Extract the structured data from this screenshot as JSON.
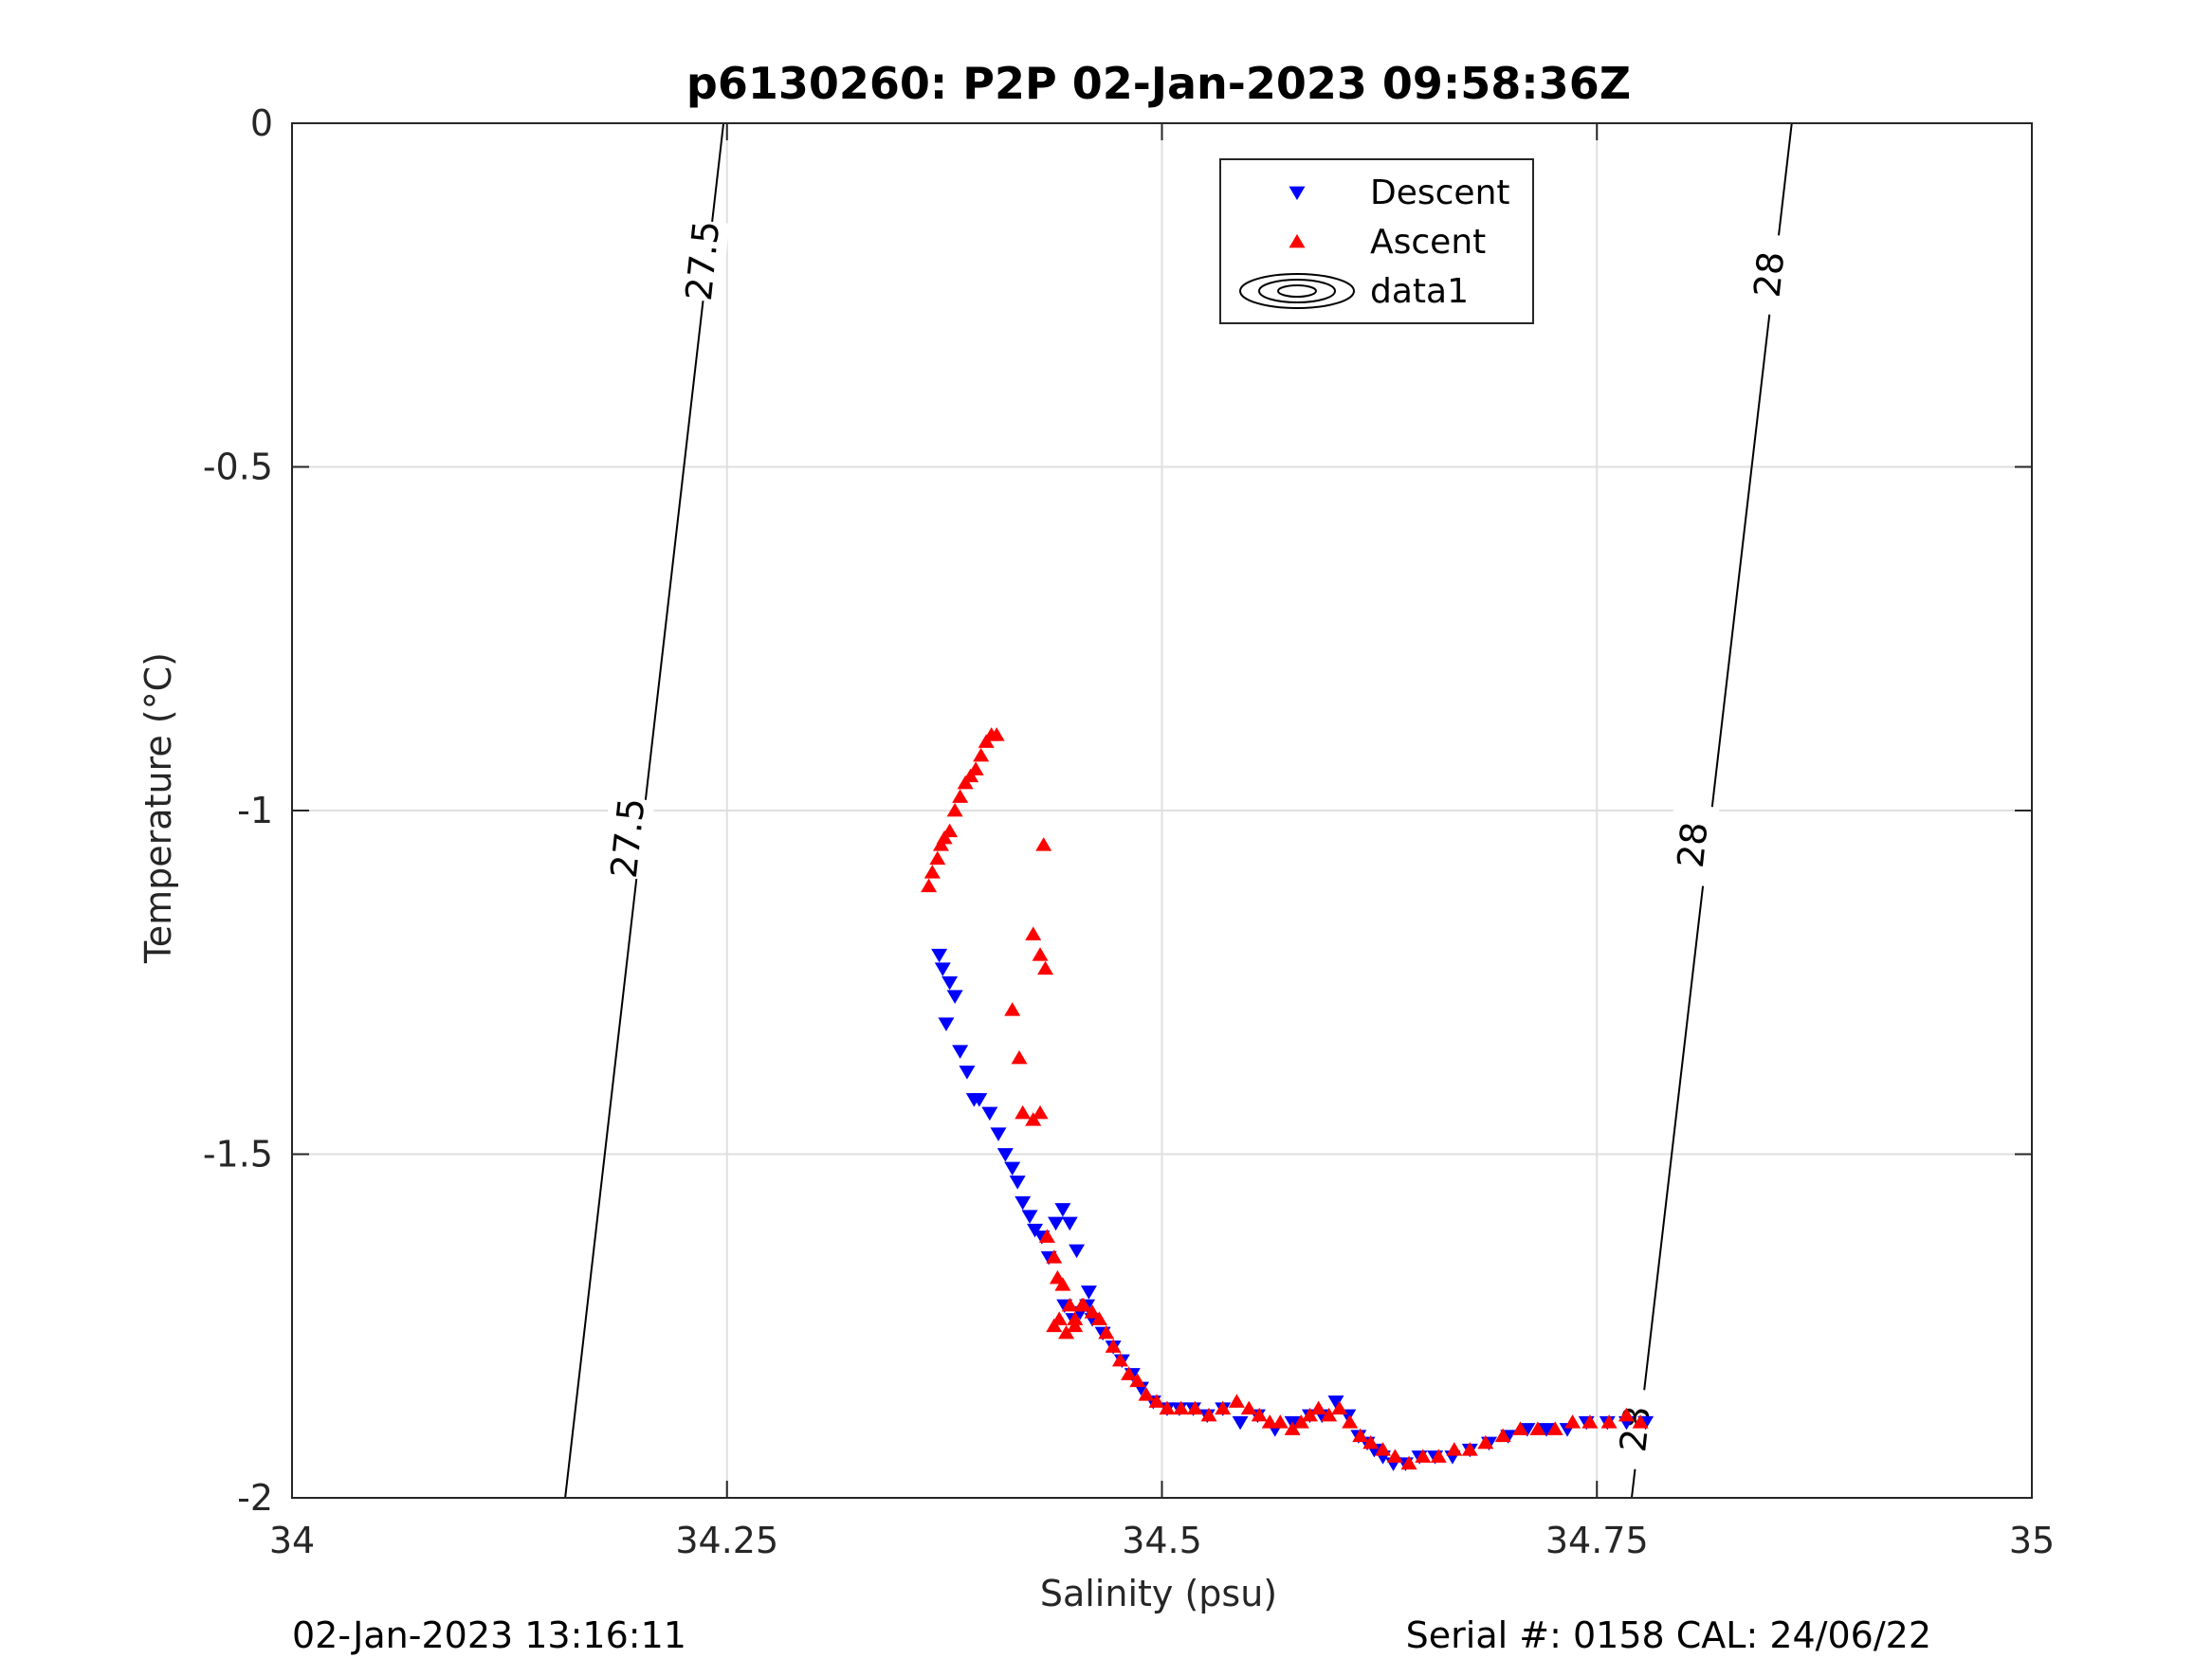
{
  "chart_data": {
    "type": "scatter",
    "title": "p6130260: P2P 02-Jan-2023 09:58:36Z",
    "xlabel": "Salinity (psu)",
    "ylabel": "Temperature (°C)",
    "xlim": [
      34,
      35
    ],
    "ylim": [
      -2,
      0
    ],
    "grid": true,
    "x_ticks": [
      34,
      34.25,
      34.5,
      34.75,
      35
    ],
    "x_tick_labels": [
      "34",
      "34.25",
      "34.5",
      "34.75",
      "35"
    ],
    "y_ticks": [
      0,
      -0.5,
      -1,
      -1.5,
      -2
    ],
    "y_tick_labels": [
      "0",
      "-0.5",
      "-1",
      "-1.5",
      "-2"
    ],
    "legend_position": "top-center",
    "series": [
      {
        "name": "Descent",
        "marker": "triangle-down",
        "color": "#0000ff",
        "x": [
          34.372,
          34.374,
          34.378,
          34.381,
          34.376,
          34.384,
          34.388,
          34.392,
          34.395,
          34.401,
          34.406,
          34.41,
          34.414,
          34.417,
          34.42,
          34.424,
          34.427,
          34.431,
          34.435,
          34.439,
          34.443,
          34.447,
          34.451,
          34.458,
          34.444,
          34.449,
          34.453,
          34.457,
          34.46,
          34.466,
          34.472,
          34.477,
          34.483,
          34.488,
          34.495,
          34.503,
          34.51,
          34.518,
          34.526,
          34.535,
          34.545,
          34.555,
          34.565,
          34.575,
          34.585,
          34.592,
          34.6,
          34.607,
          34.613,
          34.618,
          34.622,
          34.627,
          34.633,
          34.64,
          34.648,
          34.657,
          34.667,
          34.677,
          34.688,
          34.699,
          34.71,
          34.721,
          34.733,
          34.744,
          34.756,
          34.767,
          34.778
        ],
        "y": [
          -1.21,
          -1.23,
          -1.25,
          -1.27,
          -1.31,
          -1.35,
          -1.38,
          -1.42,
          -1.42,
          -1.44,
          -1.47,
          -1.5,
          -1.52,
          -1.54,
          -1.57,
          -1.59,
          -1.61,
          -1.62,
          -1.65,
          -1.6,
          -1.58,
          -1.6,
          -1.64,
          -1.7,
          -1.72,
          -1.74,
          -1.73,
          -1.72,
          -1.74,
          -1.76,
          -1.78,
          -1.8,
          -1.82,
          -1.84,
          -1.86,
          -1.87,
          -1.87,
          -1.87,
          -1.88,
          -1.87,
          -1.89,
          -1.88,
          -1.9,
          -1.89,
          -1.88,
          -1.88,
          -1.86,
          -1.88,
          -1.91,
          -1.92,
          -1.93,
          -1.94,
          -1.95,
          -1.95,
          -1.94,
          -1.94,
          -1.94,
          -1.93,
          -1.92,
          -1.91,
          -1.9,
          -1.9,
          -1.9,
          -1.89,
          -1.89,
          -1.89,
          -1.89
        ]
      },
      {
        "name": "Ascent",
        "marker": "triangle-up",
        "color": "#ff0000",
        "x": [
          34.366,
          34.368,
          34.371,
          34.373,
          34.375,
          34.378,
          34.381,
          34.384,
          34.387,
          34.39,
          34.393,
          34.396,
          34.399,
          34.402,
          34.405,
          34.432,
          34.426,
          34.43,
          34.433,
          34.414,
          34.418,
          34.42,
          34.426,
          34.43,
          34.434,
          34.438,
          34.44,
          34.443,
          34.447,
          34.45,
          34.455,
          34.46,
          34.464,
          34.468,
          34.472,
          34.476,
          34.481,
          34.486,
          34.491,
          34.497,
          34.503,
          34.511,
          34.519,
          34.527,
          34.535,
          34.543,
          34.55,
          34.556,
          34.562,
          34.568,
          34.575,
          34.58,
          34.585,
          34.59,
          34.596,
          34.602,
          34.608,
          34.614,
          34.62,
          34.627,
          34.634,
          34.642,
          34.65,
          34.659,
          34.668,
          34.677,
          34.686,
          34.696,
          34.706,
          34.716,
          34.726,
          34.736,
          34.746,
          34.757,
          34.767,
          34.775,
          34.438,
          34.441,
          34.445,
          34.45,
          34.454
        ],
        "y": [
          -1.11,
          -1.09,
          -1.07,
          -1.05,
          -1.04,
          -1.03,
          -1.0,
          -0.98,
          -0.96,
          -0.95,
          -0.94,
          -0.92,
          -0.9,
          -0.89,
          -0.89,
          -1.05,
          -1.18,
          -1.21,
          -1.23,
          -1.29,
          -1.36,
          -1.44,
          -1.45,
          -1.44,
          -1.62,
          -1.65,
          -1.68,
          -1.69,
          -1.72,
          -1.74,
          -1.72,
          -1.73,
          -1.74,
          -1.76,
          -1.78,
          -1.8,
          -1.82,
          -1.83,
          -1.85,
          -1.86,
          -1.87,
          -1.87,
          -1.87,
          -1.88,
          -1.87,
          -1.86,
          -1.87,
          -1.88,
          -1.89,
          -1.89,
          -1.9,
          -1.89,
          -1.88,
          -1.87,
          -1.88,
          -1.87,
          -1.89,
          -1.91,
          -1.92,
          -1.93,
          -1.94,
          -1.95,
          -1.94,
          -1.94,
          -1.93,
          -1.93,
          -1.92,
          -1.91,
          -1.9,
          -1.9,
          -1.9,
          -1.89,
          -1.89,
          -1.89,
          -1.88,
          -1.89,
          -1.75,
          -1.74,
          -1.76,
          -1.75,
          -1.72
        ]
      },
      {
        "name": "data1",
        "marker": "contour",
        "color": "#000000",
        "contours": [
          {
            "level": "27.5",
            "x": [
              34.157,
              34.248
            ],
            "y": [
              -2,
              0
            ]
          },
          {
            "level": "28",
            "x": [
              34.77,
              34.862
            ],
            "y": [
              -2,
              0
            ]
          }
        ]
      }
    ],
    "annotations": {
      "contour_labels": [
        {
          "text": "27.5",
          "x": 34.236,
          "y": -0.2
        },
        {
          "text": "27.5",
          "x": 34.193,
          "y": -1.04
        },
        {
          "text": "28",
          "x": 34.849,
          "y": -0.22
        },
        {
          "text": "28",
          "x": 34.805,
          "y": -1.05
        },
        {
          "text": "28",
          "x": 34.772,
          "y": -1.9
        }
      ]
    }
  },
  "footer": {
    "left": "02-Jan-2023 13:16:11",
    "right": "Serial #: 0158  CAL: 24/06/22"
  }
}
